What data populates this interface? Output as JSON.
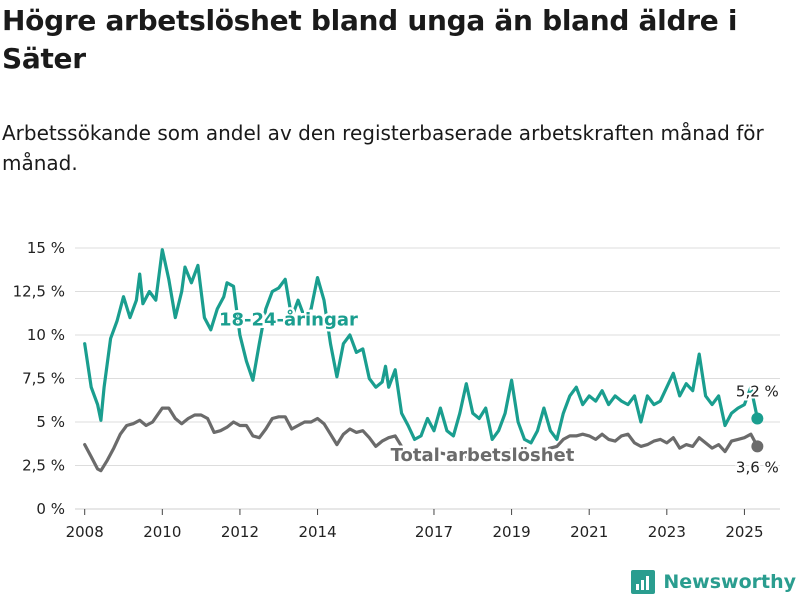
{
  "title": "Högre arbetslöshet bland unga än bland äldre i Säter",
  "subtitle": "Arbetssökande som andel av den registerbaserade arbetskraften månad för månad.",
  "brand": {
    "name": "Newsworthy",
    "icon": "newsworthy-logo-icon"
  },
  "colors": {
    "youth": "#1a9e8f",
    "total": "#6b6b6b",
    "grid": "#dddddd"
  },
  "chart_data": {
    "type": "line",
    "title": "Högre arbetslöshet bland unga än bland äldre i Säter",
    "subtitle": "Arbetssökande som andel av den registerbaserade arbetskraften månad för månad.",
    "xlabel": "",
    "ylabel": "",
    "ylim": [
      0,
      15
    ],
    "xlim": [
      "2007-10",
      "2025-12"
    ],
    "grid": true,
    "legend": "inline labels",
    "y_ticks": [
      {
        "value": 0,
        "label": "0 %"
      },
      {
        "value": 2.5,
        "label": "2,5 %"
      },
      {
        "value": 5,
        "label": "5 %"
      },
      {
        "value": 7.5,
        "label": "7,5 %"
      },
      {
        "value": 10,
        "label": "10 %"
      },
      {
        "value": 12.5,
        "label": "12,5 %"
      },
      {
        "value": 15,
        "label": "15 %"
      }
    ],
    "x_ticks": [
      {
        "value": "2008-01",
        "label": "2008"
      },
      {
        "value": "2010-01",
        "label": "2010"
      },
      {
        "value": "2012-01",
        "label": "2012"
      },
      {
        "value": "2014-01",
        "label": "2014"
      },
      {
        "value": "2017-01",
        "label": "2017"
      },
      {
        "value": "2019-01",
        "label": "2019"
      },
      {
        "value": "2021-01",
        "label": "2021"
      },
      {
        "value": "2023-01",
        "label": "2023"
      },
      {
        "value": "2025-01",
        "label": "2025"
      }
    ],
    "series": [
      {
        "name": "18-24-åringar",
        "color": "#1a9e8f",
        "end_label": "5,2 %",
        "points": [
          [
            "2008-01",
            9.5
          ],
          [
            "2008-03",
            7.0
          ],
          [
            "2008-05",
            6.0
          ],
          [
            "2008-06",
            5.1
          ],
          [
            "2008-07",
            7.0
          ],
          [
            "2008-09",
            9.8
          ],
          [
            "2008-11",
            10.8
          ],
          [
            "2009-01",
            12.2
          ],
          [
            "2009-03",
            11.0
          ],
          [
            "2009-05",
            12.0
          ],
          [
            "2009-06",
            13.5
          ],
          [
            "2009-07",
            11.8
          ],
          [
            "2009-09",
            12.5
          ],
          [
            "2009-11",
            12.0
          ],
          [
            "2010-01",
            14.9
          ],
          [
            "2010-03",
            13.2
          ],
          [
            "2010-05",
            11.0
          ],
          [
            "2010-07",
            12.5
          ],
          [
            "2010-08",
            13.9
          ],
          [
            "2010-10",
            13.0
          ],
          [
            "2010-12",
            14.0
          ],
          [
            "2011-02",
            11.0
          ],
          [
            "2011-04",
            10.3
          ],
          [
            "2011-06",
            11.5
          ],
          [
            "2011-08",
            12.2
          ],
          [
            "2011-09",
            13.0
          ],
          [
            "2011-11",
            12.8
          ],
          [
            "2012-01",
            10.0
          ],
          [
            "2012-03",
            8.5
          ],
          [
            "2012-05",
            7.4
          ],
          [
            "2012-07",
            9.5
          ],
          [
            "2012-09",
            11.5
          ],
          [
            "2012-11",
            12.5
          ],
          [
            "2013-01",
            12.7
          ],
          [
            "2013-03",
            13.2
          ],
          [
            "2013-05",
            11.0
          ],
          [
            "2013-07",
            12.0
          ],
          [
            "2013-09",
            11.0
          ],
          [
            "2013-11",
            11.5
          ],
          [
            "2014-01",
            13.3
          ],
          [
            "2014-03",
            12.0
          ],
          [
            "2014-05",
            9.5
          ],
          [
            "2014-07",
            7.6
          ],
          [
            "2014-09",
            9.5
          ],
          [
            "2014-11",
            10.0
          ],
          [
            "2015-01",
            9.0
          ],
          [
            "2015-03",
            9.2
          ],
          [
            "2015-05",
            7.5
          ],
          [
            "2015-07",
            7.0
          ],
          [
            "2015-09",
            7.3
          ],
          [
            "2015-10",
            8.2
          ],
          [
            "2015-11",
            7.0
          ],
          [
            "2016-01",
            8.0
          ],
          [
            "2016-03",
            5.5
          ],
          [
            "2016-05",
            4.8
          ],
          [
            "2016-07",
            4.0
          ],
          [
            "2016-09",
            4.2
          ],
          [
            "2016-11",
            5.2
          ],
          [
            "2017-01",
            4.5
          ],
          [
            "2017-03",
            5.8
          ],
          [
            "2017-05",
            4.5
          ],
          [
            "2017-07",
            4.2
          ],
          [
            "2017-09",
            5.5
          ],
          [
            "2017-11",
            7.2
          ],
          [
            "2018-01",
            5.5
          ],
          [
            "2018-03",
            5.2
          ],
          [
            "2018-05",
            5.8
          ],
          [
            "2018-07",
            4.0
          ],
          [
            "2018-09",
            4.5
          ],
          [
            "2018-11",
            5.5
          ],
          [
            "2019-01",
            7.4
          ],
          [
            "2019-03",
            5.0
          ],
          [
            "2019-05",
            4.0
          ],
          [
            "2019-07",
            3.8
          ],
          [
            "2019-09",
            4.5
          ],
          [
            "2019-11",
            5.8
          ],
          [
            "2020-01",
            4.5
          ],
          [
            "2020-03",
            4.0
          ],
          [
            "2020-05",
            5.5
          ],
          [
            "2020-07",
            6.5
          ],
          [
            "2020-09",
            7.0
          ],
          [
            "2020-11",
            6.0
          ],
          [
            "2021-01",
            6.5
          ],
          [
            "2021-03",
            6.2
          ],
          [
            "2021-05",
            6.8
          ],
          [
            "2021-07",
            6.0
          ],
          [
            "2021-09",
            6.5
          ],
          [
            "2021-11",
            6.2
          ],
          [
            "2022-01",
            6.0
          ],
          [
            "2022-03",
            6.5
          ],
          [
            "2022-05",
            5.0
          ],
          [
            "2022-07",
            6.5
          ],
          [
            "2022-09",
            6.0
          ],
          [
            "2022-11",
            6.2
          ],
          [
            "2023-01",
            7.0
          ],
          [
            "2023-03",
            7.8
          ],
          [
            "2023-05",
            6.5
          ],
          [
            "2023-07",
            7.2
          ],
          [
            "2023-09",
            6.8
          ],
          [
            "2023-11",
            8.9
          ],
          [
            "2024-01",
            6.5
          ],
          [
            "2024-03",
            6.0
          ],
          [
            "2024-05",
            6.5
          ],
          [
            "2024-07",
            4.8
          ],
          [
            "2024-09",
            5.5
          ],
          [
            "2024-11",
            5.8
          ],
          [
            "2025-01",
            6.0
          ],
          [
            "2025-03",
            7.0
          ],
          [
            "2025-05",
            5.2
          ]
        ]
      },
      {
        "name": "Total arbetslöshet",
        "color": "#6b6b6b",
        "end_label": "3,6 %",
        "points": [
          [
            "2008-01",
            3.7
          ],
          [
            "2008-03",
            3.0
          ],
          [
            "2008-05",
            2.3
          ],
          [
            "2008-06",
            2.2
          ],
          [
            "2008-08",
            2.8
          ],
          [
            "2008-10",
            3.5
          ],
          [
            "2008-12",
            4.3
          ],
          [
            "2009-02",
            4.8
          ],
          [
            "2009-04",
            4.9
          ],
          [
            "2009-06",
            5.1
          ],
          [
            "2009-08",
            4.8
          ],
          [
            "2009-10",
            5.0
          ],
          [
            "2010-01",
            5.8
          ],
          [
            "2010-03",
            5.8
          ],
          [
            "2010-05",
            5.2
          ],
          [
            "2010-07",
            4.9
          ],
          [
            "2010-09",
            5.2
          ],
          [
            "2010-11",
            5.4
          ],
          [
            "2011-01",
            5.4
          ],
          [
            "2011-03",
            5.2
          ],
          [
            "2011-05",
            4.4
          ],
          [
            "2011-07",
            4.5
          ],
          [
            "2011-09",
            4.7
          ],
          [
            "2011-11",
            5.0
          ],
          [
            "2012-01",
            4.8
          ],
          [
            "2012-03",
            4.8
          ],
          [
            "2012-05",
            4.2
          ],
          [
            "2012-07",
            4.1
          ],
          [
            "2012-09",
            4.6
          ],
          [
            "2012-11",
            5.2
          ],
          [
            "2013-01",
            5.3
          ],
          [
            "2013-03",
            5.3
          ],
          [
            "2013-05",
            4.6
          ],
          [
            "2013-07",
            4.8
          ],
          [
            "2013-09",
            5.0
          ],
          [
            "2013-11",
            5.0
          ],
          [
            "2014-01",
            5.2
          ],
          [
            "2014-03",
            4.9
          ],
          [
            "2014-05",
            4.3
          ],
          [
            "2014-07",
            3.7
          ],
          [
            "2014-09",
            4.3
          ],
          [
            "2014-11",
            4.6
          ],
          [
            "2015-01",
            4.4
          ],
          [
            "2015-03",
            4.5
          ],
          [
            "2015-05",
            4.1
          ],
          [
            "2015-07",
            3.6
          ],
          [
            "2015-09",
            3.9
          ],
          [
            "2015-11",
            4.1
          ],
          [
            "2016-01",
            4.2
          ],
          [
            "2016-03",
            3.6
          ],
          [
            "2016-05",
            3.1
          ],
          [
            "2016-07",
            3.0
          ],
          [
            "2016-09",
            3.1
          ],
          [
            "2016-11",
            3.2
          ],
          [
            "2017-01",
            3.3
          ],
          [
            "2017-06",
            3.1
          ],
          [
            "2017-11",
            3.0
          ],
          [
            "2018-05",
            2.9
          ],
          [
            "2018-09",
            3.1
          ],
          [
            "2019-01",
            3.4
          ],
          [
            "2019-05",
            3.0
          ],
          [
            "2019-09",
            3.3
          ],
          [
            "2020-01",
            3.5
          ],
          [
            "2020-03",
            3.6
          ],
          [
            "2020-05",
            4.0
          ],
          [
            "2020-07",
            4.2
          ],
          [
            "2020-09",
            4.2
          ],
          [
            "2020-11",
            4.3
          ],
          [
            "2021-01",
            4.2
          ],
          [
            "2021-03",
            4.0
          ],
          [
            "2021-05",
            4.3
          ],
          [
            "2021-07",
            4.0
          ],
          [
            "2021-09",
            3.9
          ],
          [
            "2021-11",
            4.2
          ],
          [
            "2022-01",
            4.3
          ],
          [
            "2022-03",
            3.8
          ],
          [
            "2022-05",
            3.6
          ],
          [
            "2022-07",
            3.7
          ],
          [
            "2022-09",
            3.9
          ],
          [
            "2022-11",
            4.0
          ],
          [
            "2023-01",
            3.8
          ],
          [
            "2023-03",
            4.1
          ],
          [
            "2023-05",
            3.5
          ],
          [
            "2023-07",
            3.7
          ],
          [
            "2023-09",
            3.6
          ],
          [
            "2023-11",
            4.1
          ],
          [
            "2024-01",
            3.8
          ],
          [
            "2024-03",
            3.5
          ],
          [
            "2024-05",
            3.7
          ],
          [
            "2024-07",
            3.3
          ],
          [
            "2024-09",
            3.9
          ],
          [
            "2024-11",
            4.0
          ],
          [
            "2025-01",
            4.1
          ],
          [
            "2025-03",
            4.3
          ],
          [
            "2025-05",
            3.6
          ]
        ]
      }
    ]
  }
}
